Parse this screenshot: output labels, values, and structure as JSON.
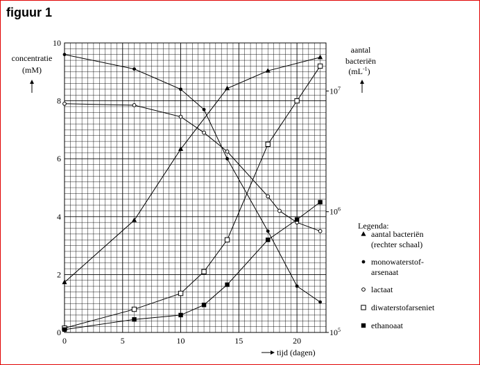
{
  "figure_title": "figuur 1",
  "chart_data": {
    "type": "line",
    "title": "figuur 1",
    "xlabel": "tijd (dagen)",
    "xlim": [
      0,
      22.5
    ],
    "x_ticks": [
      "0",
      "5",
      "10",
      "15",
      "20"
    ],
    "y_left": {
      "label_line1": "concentratie",
      "label_line2": "(mM)",
      "lim": [
        0,
        10
      ],
      "ticks": [
        "0",
        "2",
        "4",
        "6",
        "8",
        "10"
      ]
    },
    "y_right": {
      "label_line1": "aantal",
      "label_line2": "bacteriën",
      "label_unit": "(mL",
      "label_exp": "-1",
      "label_close": ")",
      "scale": "log",
      "lim": [
        100000,
        25000000
      ],
      "ticks": [
        {
          "value": 100000,
          "base": "10",
          "exp": "5"
        },
        {
          "value": 1000000,
          "base": "10",
          "exp": "6"
        },
        {
          "value": 10000000,
          "base": "10",
          "exp": "7"
        }
      ]
    },
    "grid": true,
    "legend_title": "Legenda:",
    "legend_position": "right",
    "series": [
      {
        "name": "aantal bacteriën",
        "name_line2": "(rechter schaal)",
        "marker": "triangle",
        "axis": "right",
        "x": [
          0,
          6,
          10,
          14,
          17.5,
          22
        ],
        "y": [
          260000,
          850000,
          3300000,
          10500000,
          14700000,
          19000000
        ]
      },
      {
        "name": "monowaterstof-",
        "name_line2": "arsenaat",
        "marker": "dot",
        "axis": "left",
        "x": [
          0,
          6,
          10,
          12,
          14,
          17.5,
          20,
          22
        ],
        "y": [
          9.6,
          9.1,
          8.4,
          7.7,
          6.0,
          3.5,
          1.6,
          1.05
        ]
      },
      {
        "name": "lactaat",
        "marker": "circle-open",
        "axis": "left",
        "x": [
          0,
          6,
          10,
          12,
          14,
          17.5,
          18.5,
          20,
          22
        ],
        "y": [
          7.9,
          7.85,
          7.45,
          6.9,
          6.25,
          4.7,
          4.2,
          3.8,
          3.5
        ]
      },
      {
        "name": "diwaterstofarseniet",
        "marker": "square-open",
        "axis": "left",
        "x": [
          0,
          6,
          10,
          12,
          14,
          17.5,
          20,
          22
        ],
        "y": [
          0.15,
          0.8,
          1.35,
          2.1,
          3.2,
          6.5,
          8.0,
          9.2
        ]
      },
      {
        "name": "ethanoaat",
        "marker": "square-filled",
        "axis": "left",
        "x": [
          0,
          6,
          10,
          12,
          14,
          17.5,
          20,
          22
        ],
        "y": [
          0.1,
          0.45,
          0.6,
          0.95,
          1.65,
          3.2,
          3.9,
          4.5
        ]
      }
    ]
  }
}
